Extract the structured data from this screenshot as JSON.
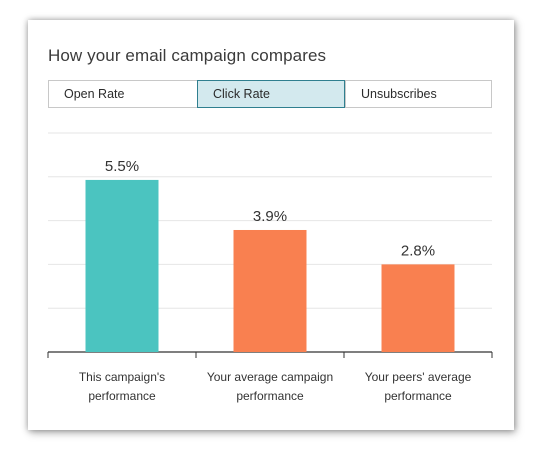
{
  "title": "How your email campaign compares",
  "tabs": [
    {
      "label": "Open Rate",
      "selected": false
    },
    {
      "label": "Click Rate",
      "selected": true
    },
    {
      "label": "Unsubscribes",
      "selected": false
    }
  ],
  "colors": {
    "teal": "#4bc4c0",
    "orange": "#f98050",
    "selected_tab_bg": "#d3e9ee",
    "selected_tab_border": "#2f7f8f"
  },
  "chart_data": {
    "type": "bar",
    "categories": [
      [
        "This campaign's",
        "performance"
      ],
      [
        "Your average campaign",
        "performance"
      ],
      [
        "Your peers' average",
        "performance"
      ]
    ],
    "values": [
      5.5,
      3.9,
      2.8
    ],
    "data_labels": [
      "5.5%",
      "3.9%",
      "2.8%"
    ],
    "bar_colors": [
      "#4bc4c0",
      "#f98050",
      "#f98050"
    ],
    "ylim": [
      0,
      7
    ],
    "grid": true,
    "title": "",
    "xlabel": "",
    "ylabel": ""
  }
}
